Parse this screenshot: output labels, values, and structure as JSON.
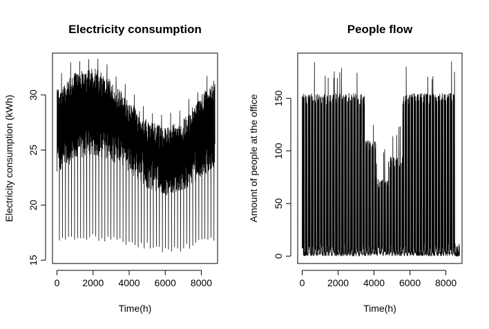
{
  "chart_data": [
    {
      "type": "line",
      "title": "Electricity consumption",
      "xlabel": "Time(h)",
      "ylabel": "Electricity consumption (kWh)",
      "xlim": [
        -250,
        8900
      ],
      "ylim": [
        14.7,
        33.8
      ],
      "xticks": [
        0,
        2000,
        4000,
        6000,
        8000
      ],
      "yticks": [
        15,
        20,
        25,
        30
      ],
      "xtick_labels": [
        "0",
        "2000",
        "4000",
        "6000",
        "8000"
      ],
      "ytick_labels": [
        "15",
        "20",
        "25",
        "30"
      ],
      "series": [
        {
          "name": "Electricity consumption",
          "x": [
            0,
            1000,
            2000,
            3000,
            4000,
            5000,
            6000,
            7000,
            8000,
            8760
          ],
          "daily_peak": [
            30.5,
            32.0,
            32.5,
            31.5,
            29.5,
            27.8,
            27.0,
            27.8,
            30.0,
            31.5
          ],
          "daily_base": [
            24.5,
            25.5,
            26.0,
            25.5,
            24.5,
            23.0,
            22.3,
            22.8,
            24.0,
            24.8
          ],
          "weekly_min": [
            16.5,
            16.8,
            16.8,
            16.6,
            16.3,
            16.0,
            15.6,
            15.8,
            16.4,
            16.7
          ],
          "period_h": 168
        }
      ]
    },
    {
      "type": "line",
      "title": "People flow",
      "xlabel": "Time(h)",
      "ylabel": "Amount of people at the office",
      "xlim": [
        -250,
        8900
      ],
      "ylim": [
        -7,
        193
      ],
      "xticks": [
        0,
        2000,
        4000,
        6000,
        8000
      ],
      "yticks": [
        0,
        50,
        100,
        150
      ],
      "xtick_labels": [
        "0",
        "2000",
        "4000",
        "6000",
        "8000"
      ],
      "ytick_labels": [
        "0",
        "50",
        "100",
        "150"
      ],
      "series": [
        {
          "name": "People flow",
          "segments": [
            {
              "x_start": 0,
              "x_end": 3500,
              "peak": 155
            },
            {
              "x_start": 3500,
              "x_end": 4100,
              "peak": 110
            },
            {
              "x_start": 4100,
              "x_end": 4800,
              "peak": 75
            },
            {
              "x_start": 4800,
              "x_end": 5600,
              "peak": 95
            },
            {
              "x_start": 5600,
              "x_end": 8500,
              "peak": 155
            },
            {
              "x_start": 8500,
              "x_end": 8760,
              "peak": 6
            }
          ],
          "max_value": 185,
          "min_value": 0,
          "period_h": 168
        }
      ]
    }
  ]
}
